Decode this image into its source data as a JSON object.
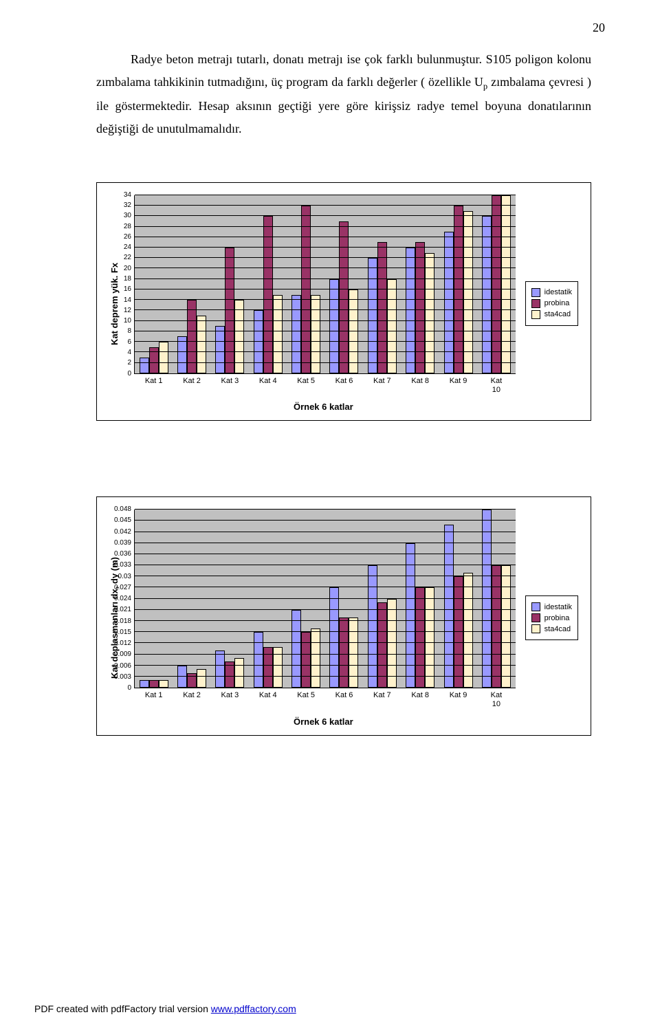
{
  "page_number": "20",
  "paragraph_html": "Radye beton metrajı tutarlı, donatı metrajı ise çok farklı bulunmuştur. S105 poligon kolonu zımbalama tahkikinin tutmadığını, üç program da farklı değerler ( özellikle U<sub>p</sub> zımbalama çevresi ) ile göstermektedir. Hesap aksının geçtiği yere göre kirişsiz radye temel boyuna donatılarının değiştiği de unutulmamalıdır.",
  "legend_labels": [
    "idestatik",
    "probina",
    "sta4cad"
  ],
  "series_colors": {
    "idestatik": "#9999ff",
    "probina": "#993366",
    "sta4cad": "#fff2cc"
  },
  "plot_bg": "#c0c0c0",
  "grid_color": "#000000",
  "axis_font": "Arial",
  "x_categories": [
    "Kat 1",
    "Kat 2",
    "Kat 3",
    "Kat 4",
    "Kat 5",
    "Kat 6",
    "Kat 7",
    "Kat 8",
    "Kat 9",
    "Kat 10"
  ],
  "x_title": "Örnek 6 katlar",
  "chart1": {
    "type": "bar",
    "ylabel": "Kat deprem yük. Fx",
    "ymin": 0,
    "ymax": 34,
    "ystep": 2,
    "yticks": [
      34,
      32,
      30,
      28,
      26,
      24,
      22,
      20,
      18,
      16,
      14,
      12,
      10,
      8,
      6,
      4,
      2,
      0
    ],
    "values": {
      "idestatik": [
        3,
        7,
        9,
        12,
        15,
        18,
        22,
        24,
        27,
        30
      ],
      "probina": [
        5,
        14,
        24,
        30,
        32,
        29,
        25,
        25,
        32,
        34
      ],
      "sta4cad": [
        6,
        11,
        14,
        15,
        15,
        16,
        18,
        23,
        31,
        34
      ]
    }
  },
  "chart2": {
    "type": "bar",
    "ylabel": "Kat deplasmanları dx, dy (m)",
    "ymin": 0,
    "ymax": 0.048,
    "ystep": 0.003,
    "yticks": [
      0.048,
      0.045,
      0.042,
      0.039,
      0.036,
      0.033,
      0.03,
      0.027,
      0.024,
      0.021,
      0.018,
      0.015,
      0.012,
      0.009,
      0.006,
      0.003,
      0
    ],
    "values": {
      "idestatik": [
        0.002,
        0.006,
        0.01,
        0.015,
        0.021,
        0.027,
        0.033,
        0.039,
        0.044,
        0.048
      ],
      "probina": [
        0.002,
        0.004,
        0.007,
        0.011,
        0.015,
        0.019,
        0.023,
        0.027,
        0.03,
        0.033
      ],
      "sta4cad": [
        0.002,
        0.005,
        0.008,
        0.011,
        0.016,
        0.019,
        0.024,
        0.027,
        0.031,
        0.033
      ]
    }
  },
  "footer_text": "PDF created with pdfFactory trial version ",
  "footer_link": "www.pdffactory.com"
}
